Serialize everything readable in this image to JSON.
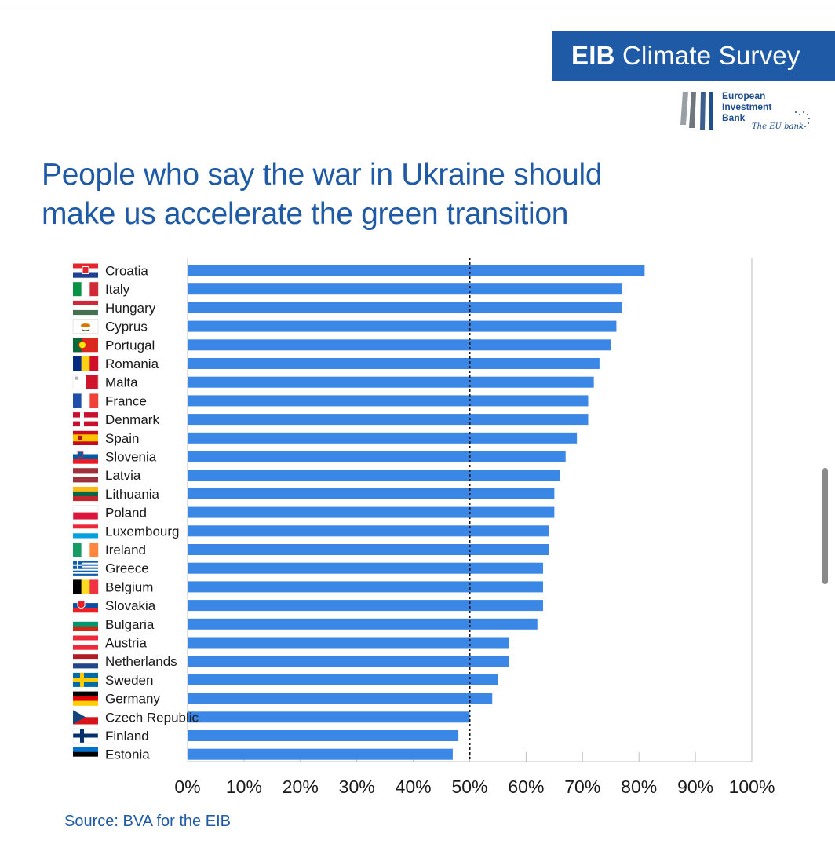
{
  "header": {
    "brand_bold": "EIB",
    "brand_rest": "Climate Survey",
    "logo_line1": "European",
    "logo_line2": "Investment",
    "logo_line3": "Bank",
    "logo_tagline": "The EU bank",
    "colors": {
      "brand_blue": "#1f5aa6"
    }
  },
  "title_line1": "People who say the war in Ukraine should",
  "title_line2": "make us accelerate the green transition",
  "source": "Source: BVA for the EIB",
  "chart_data": {
    "type": "bar",
    "orientation": "horizontal",
    "categories": [
      "Croatia",
      "Italy",
      "Hungary",
      "Cyprus",
      "Portugal",
      "Romania",
      "Malta",
      "France",
      "Denmark",
      "Spain",
      "Slovenia",
      "Latvia",
      "Lithuania",
      "Poland",
      "Luxembourg",
      "Ireland",
      "Greece",
      "Belgium",
      "Slovakia",
      "Bulgaria",
      "Austria",
      "Netherlands",
      "Sweden",
      "Germany",
      "Czech Republic",
      "Finland",
      "Estonia"
    ],
    "values": [
      81,
      77,
      77,
      76,
      75,
      73,
      72,
      71,
      71,
      69,
      67,
      66,
      65,
      65,
      64,
      64,
      63,
      63,
      63,
      62,
      57,
      57,
      55,
      54,
      50,
      48,
      47
    ],
    "xlim": [
      0,
      100
    ],
    "xticks": [
      "0%",
      "10%",
      "20%",
      "30%",
      "40%",
      "50%",
      "60%",
      "70%",
      "80%",
      "90%",
      "100%"
    ],
    "reference_line": 50,
    "grid": "vertical",
    "bar_color": "#3a87e6",
    "flag_icons": [
      "croatia-flag",
      "italy-flag",
      "hungary-flag",
      "cyprus-flag",
      "portugal-flag",
      "romania-flag",
      "malta-flag",
      "france-flag",
      "denmark-flag",
      "spain-flag",
      "slovenia-flag",
      "latvia-flag",
      "lithuania-flag",
      "poland-flag",
      "luxembourg-flag",
      "ireland-flag",
      "greece-flag",
      "belgium-flag",
      "slovakia-flag",
      "bulgaria-flag",
      "austria-flag",
      "netherlands-flag",
      "sweden-flag",
      "germany-flag",
      "czech-republic-flag",
      "finland-flag",
      "estonia-flag"
    ]
  }
}
